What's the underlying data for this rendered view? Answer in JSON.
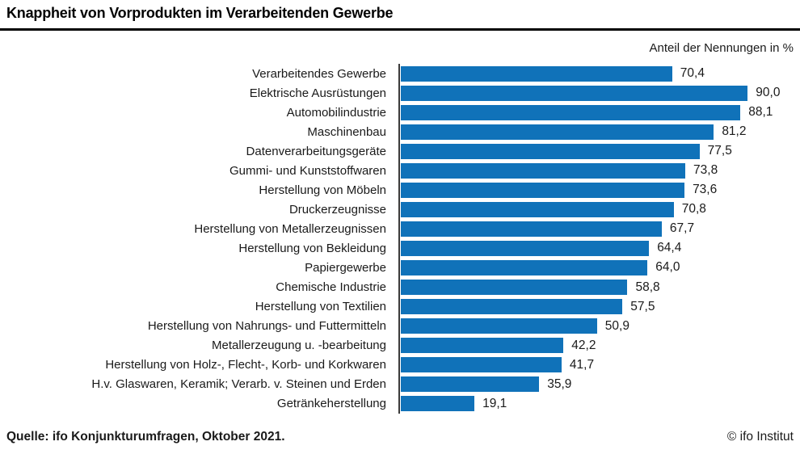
{
  "header": {
    "title": "Knappheit von Vorprodukten im Verarbeitenden Gewerbe",
    "subtitle_right": "Anteil der Nennungen in %"
  },
  "footer": {
    "source": "Quelle: ifo Konjunkturumfragen, Oktober 2021.",
    "copyright": "© ifo Institut"
  },
  "colors": {
    "bar": "#1072b9",
    "axis_line": "#3a3a3a",
    "title_rule": "#000000",
    "text": "#1a1a1a"
  },
  "chart_data": {
    "type": "bar",
    "orientation": "horizontal",
    "title": "Knappheit von Vorprodukten im Verarbeitenden Gewerbe",
    "subtitle": "Anteil der Nennungen in %",
    "xlabel": "Anteil der Nennungen in %",
    "ylabel": "",
    "xlim": [
      0,
      100
    ],
    "grid": false,
    "legend": "none",
    "categories": [
      "Verarbeitendes Gewerbe",
      "Elektrische Ausrüstungen",
      "Automobilindustrie",
      "Maschinenbau",
      "Datenverarbeitungsgeräte",
      "Gummi- und Kunststoffwaren",
      "Herstellung von Möbeln",
      "Druckerzeugnisse",
      "Herstellung von Metallerzeugnissen",
      "Herstellung von Bekleidung",
      "Papiergewerbe",
      "Chemische Industrie",
      "Herstellung von Textilien",
      "Herstellung von Nahrungs- und Futtermitteln",
      "Metallerzeugung u. -bearbeitung",
      "Herstellung von Holz-, Flecht-, Korb- und Korkwaren",
      "H.v. Glaswaren, Keramik; Verarb. v. Steinen und Erden",
      "Getränkeherstellung"
    ],
    "values": [
      70.4,
      90.0,
      88.1,
      81.2,
      77.5,
      73.8,
      73.6,
      70.8,
      67.7,
      64.4,
      64.0,
      58.8,
      57.5,
      50.9,
      42.2,
      41.7,
      35.9,
      19.1
    ],
    "value_labels": [
      "70,4",
      "90,0",
      "88,1",
      "81,2",
      "77,5",
      "73,8",
      "73,6",
      "70,8",
      "67,7",
      "64,4",
      "64,0",
      "58,8",
      "57,5",
      "50,9",
      "42,2",
      "41,7",
      "35,9",
      "19,1"
    ]
  }
}
